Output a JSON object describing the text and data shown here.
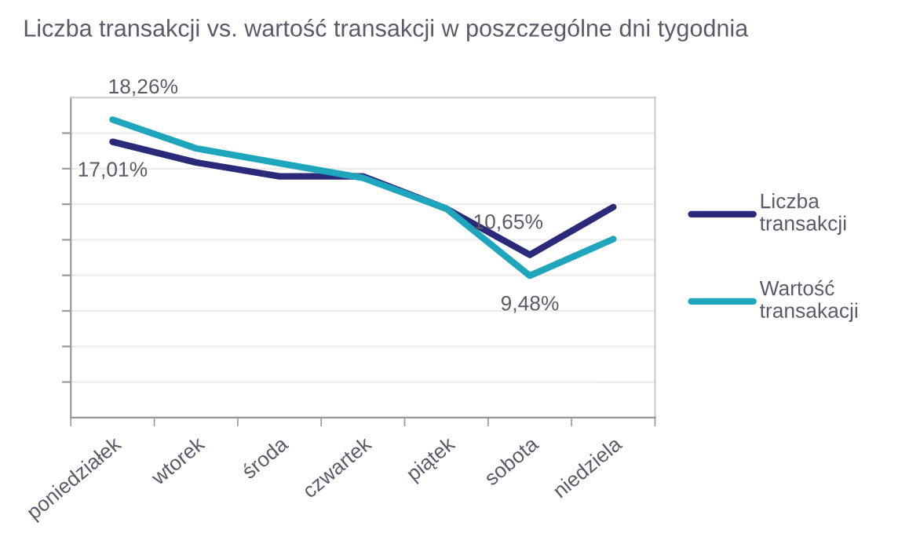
{
  "chart_data": {
    "type": "line",
    "title": "Liczba transakcji vs. wartość transakcji w poszczególne dni tygodnia",
    "categories": [
      "poniedziałek",
      "wtorek",
      "środa",
      "czwartek",
      "piątek",
      "sobota",
      "niedziela"
    ],
    "ylim": [
      1.5,
      19.5
    ],
    "yticks": [
      {
        "value": 3.5,
        "label": null
      },
      {
        "value": 5.5,
        "label": null
      },
      {
        "value": 7.5,
        "label": null
      },
      {
        "value": 9.5,
        "label": null
      },
      {
        "value": 11.5,
        "label": null
      },
      {
        "value": 13.5,
        "label": null
      },
      {
        "value": 15.5,
        "label": null
      },
      {
        "value": 17.5,
        "label": null
      }
    ],
    "tick_labels": "x",
    "grid": "y",
    "legend": "right",
    "marker": "none",
    "line_style": "solid",
    "series": [
      {
        "name": "Liczba transakcji",
        "color": "#2b2a7a",
        "values": [
          17.01,
          15.85,
          15.07,
          15.07,
          13.25,
          10.65,
          13.34
        ],
        "value_labels": [
          "17,01%",
          null,
          null,
          null,
          null,
          "10,65%",
          null
        ]
      },
      {
        "name": "Wartość transakacji",
        "color": "#1fa6bd",
        "values": [
          18.26,
          16.64,
          15.81,
          14.98,
          13.25,
          9.48,
          11.54
        ],
        "value_labels": [
          "18,26%",
          null,
          null,
          null,
          null,
          "9,48%",
          null
        ]
      }
    ]
  }
}
